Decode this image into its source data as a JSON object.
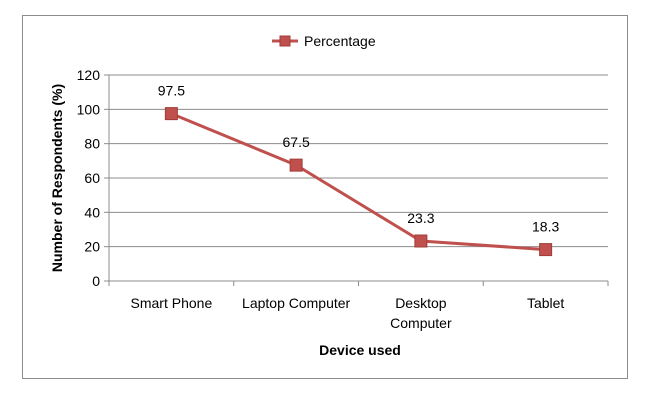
{
  "chart_data": {
    "type": "line",
    "categories": [
      [
        "Smart Phone"
      ],
      [
        "Laptop Computer"
      ],
      [
        "Desktop",
        "Computer"
      ],
      [
        "Tablet"
      ]
    ],
    "series": [
      {
        "name": "Percentage",
        "values": [
          97.5,
          67.5,
          23.3,
          18.3
        ],
        "data_labels": [
          "97.5",
          "67.5",
          "23.3",
          "18.3"
        ],
        "color": "#c0504d"
      }
    ],
    "xlabel": "Device used",
    "ylabel": "Number of Respondents (%)",
    "ylim": [
      0,
      120
    ],
    "yticks": [
      "0",
      "20",
      "40",
      "60",
      "80",
      "100",
      "120"
    ],
    "grid": true,
    "legend_position": "top-center"
  }
}
